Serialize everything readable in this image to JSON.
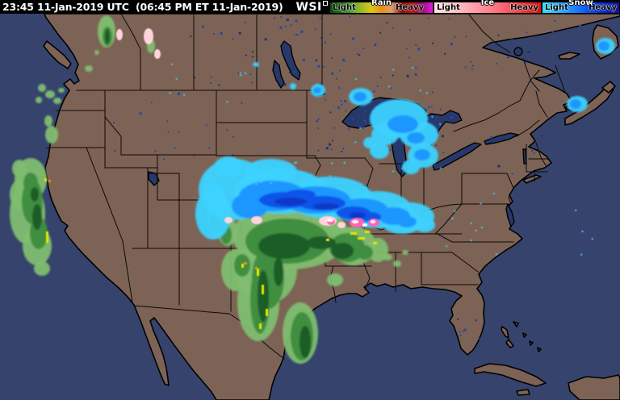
{
  "header": {
    "timestamp": "23:45 11-Jan-2019 UTC  (06:45 PM ET 11-Jan-2019)",
    "logo": "WSI",
    "background": "#000000",
    "text_color": "#ffffff"
  },
  "legend": {
    "sections": [
      {
        "id": "rain",
        "title": "Rain",
        "light_label": "Light",
        "heavy_label": "Heavy",
        "stops": [
          "#0a4a0a",
          "#257025",
          "#4f9f2f",
          "#9ab828",
          "#d8c818",
          "#e89018",
          "#d8a070",
          "#881010",
          "#c01818",
          "#98107a",
          "#e818e0"
        ]
      },
      {
        "id": "ice",
        "title": "Ice",
        "light_label": "Light",
        "heavy_label": "Heavy",
        "stops": [
          "#ffe4e4",
          "#ffc2ca",
          "#ff9aa6",
          "#ff6f7e",
          "#f04048",
          "#e01010"
        ]
      },
      {
        "id": "snow",
        "title": "Snow",
        "light_label": "Light",
        "heavy_label": "Heavy",
        "stops": [
          "#30e0ff",
          "#28b4ff",
          "#1e86ff",
          "#1050f0",
          "#0a2cc8",
          "#140f96"
        ]
      }
    ]
  },
  "map": {
    "colors": {
      "ocean": "#36436d",
      "land": "#7d6355",
      "lake": "#27386a",
      "border": "#000000",
      "state_border": "#0a0a0a",
      "rain_light": "#7fbe70",
      "rain_mid": "#3f8e3f",
      "rain_dark": "#1d5c25",
      "rain_heavy_yellow": "#e8e400",
      "rain_heavy_orange": "#f09018",
      "snow_light": "#3dd2ff",
      "snow_mid": "#1f97ff",
      "snow_deep": "#0a55e8",
      "snow_core": "#0a38c8",
      "ice_light": "#ffd4dc",
      "ice_bright": "#ff63b5",
      "ice_core": "#ffffff",
      "speckle_navy": "#2a46a0",
      "speckle_cyan": "#3fd0ff"
    }
  }
}
